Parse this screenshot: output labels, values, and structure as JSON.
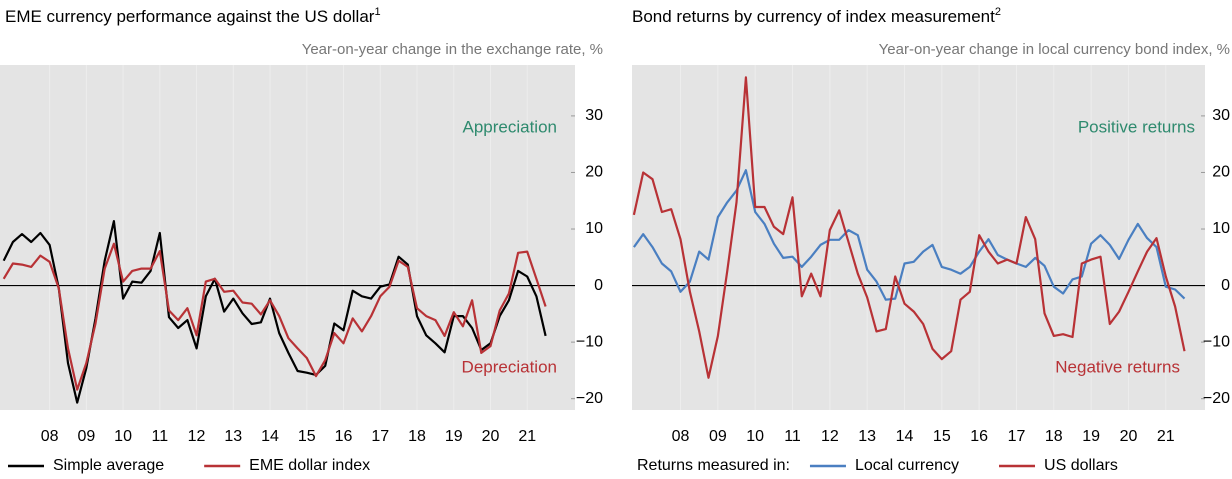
{
  "chart_data": [
    {
      "type": "line",
      "title": "EME currency performance against the US dollar",
      "title_superscript": "1",
      "subtitle": "Year-on-year change in the exchange rate, %",
      "annotations": [
        {
          "text": "Appreciation",
          "color": "#2e8a6e"
        },
        {
          "text": "Depreciation",
          "color": "#b83236"
        }
      ],
      "x": [
        2007.25,
        2007.5,
        2007.75,
        2008,
        2008.25,
        2008.5,
        2008.75,
        2009,
        2009.25,
        2009.5,
        2009.75,
        2010,
        2010.25,
        2010.5,
        2010.75,
        2011,
        2011.25,
        2011.5,
        2011.75,
        2012,
        2012.25,
        2012.5,
        2012.75,
        2013,
        2013.25,
        2013.5,
        2013.75,
        2014,
        2014.25,
        2014.5,
        2014.75,
        2015,
        2015.25,
        2015.5,
        2015.75,
        2016,
        2016.25,
        2016.5,
        2016.75,
        2017,
        2017.25,
        2017.5,
        2017.75,
        2018,
        2018.25,
        2018.5,
        2018.75,
        2019,
        2019.25,
        2019.5,
        2019.75,
        2020,
        2020.25,
        2020.5,
        2020.75,
        2021,
        2021.25,
        2021.5,
        2021.75,
        2022
      ],
      "series": [
        {
          "name": "Simple average",
          "color": "#000000",
          "values": [
            4.4,
            7.7,
            9.1,
            7.7,
            9.3,
            7.2,
            -0.5,
            -13.7,
            -20.7,
            -14.6,
            -5.8,
            4.4,
            11.4,
            -2.3,
            0.7,
            0.5,
            2.6,
            9.3,
            -5.6,
            -7.5,
            -6.1,
            -11.1,
            -1.9,
            1.2,
            -4.6,
            -2.3,
            -4.9,
            -6.8,
            -6.5,
            -2.3,
            -8.4,
            -11.9,
            -15.1,
            -15.4,
            -15.8,
            -14.2,
            -6.7,
            -7.9,
            -0.9,
            -1.9,
            -2.3,
            -0.2,
            0.2,
            5.1,
            3.7,
            -5.4,
            -8.8,
            -10.2,
            -11.8,
            -5.4,
            -5.4,
            -7.5,
            -11.4,
            -10.2,
            -5.4,
            -2.6,
            2.6,
            1.6,
            -1.9,
            -8.9
          ]
        },
        {
          "name": "EME dollar index",
          "color": "#b83236",
          "values": [
            1.2,
            3.9,
            3.7,
            3.3,
            5.3,
            4.2,
            -0.5,
            -11.1,
            -18.4,
            -13.7,
            -6.7,
            3.0,
            7.4,
            0.7,
            2.6,
            3.0,
            3.0,
            6.1,
            -4.4,
            -6.1,
            -4.0,
            -8.8,
            0.7,
            1.2,
            -1.1,
            -0.9,
            -3.0,
            -3.2,
            -5.1,
            -2.6,
            -5.4,
            -9.3,
            -11.1,
            -12.8,
            -16.0,
            -13.2,
            -8.4,
            -10.2,
            -5.8,
            -8.1,
            -5.4,
            -1.9,
            -0.2,
            4.4,
            3.3,
            -4.0,
            -5.4,
            -6.1,
            -8.9,
            -4.7,
            -7.2,
            -2.6,
            -11.9,
            -10.7,
            -4.4,
            -1.4,
            5.8,
            6.0,
            1.2,
            -3.7
          ]
        }
      ],
      "xlim": [
        2007.15,
        2022.8
      ],
      "xticks": [
        {
          "value": 2008.5,
          "label": "08"
        },
        {
          "value": 2009.5,
          "label": "09"
        },
        {
          "value": 2010.5,
          "label": "10"
        },
        {
          "value": 2011.5,
          "label": "11"
        },
        {
          "value": 2012.5,
          "label": "12"
        },
        {
          "value": 2013.5,
          "label": "13"
        },
        {
          "value": 2014.5,
          "label": "14"
        },
        {
          "value": 2015.5,
          "label": "15"
        },
        {
          "value": 2016.5,
          "label": "16"
        },
        {
          "value": 2017.5,
          "label": "17"
        },
        {
          "value": 2018.5,
          "label": "18"
        },
        {
          "value": 2019.5,
          "label": "19"
        },
        {
          "value": 2020.5,
          "label": "20"
        },
        {
          "value": 2021.5,
          "label": "21"
        }
      ],
      "ylim": [
        -22,
        39
      ],
      "yticks": [
        {
          "value": -20,
          "label": "−20"
        },
        {
          "value": -10,
          "label": "−10"
        },
        0,
        10,
        20,
        30
      ]
    },
    {
      "type": "line",
      "title": "Bond returns by currency of index measurement",
      "title_superscript": "2",
      "subtitle": "Year-on-year change in local currency bond index, %",
      "annotations": [
        {
          "text": "Positive returns",
          "color": "#2e8a6e"
        },
        {
          "text": "Negative returns",
          "color": "#b83236"
        }
      ],
      "legend_prefix": "Returns measured in:",
      "x": [
        2007.25,
        2007.5,
        2007.75,
        2008,
        2008.25,
        2008.5,
        2008.75,
        2009,
        2009.25,
        2009.5,
        2009.75,
        2010,
        2010.25,
        2010.5,
        2010.75,
        2011,
        2011.25,
        2011.5,
        2011.75,
        2012,
        2012.25,
        2012.5,
        2012.75,
        2013,
        2013.25,
        2013.5,
        2013.75,
        2014,
        2014.25,
        2014.5,
        2014.75,
        2015,
        2015.25,
        2015.5,
        2015.75,
        2016,
        2016.25,
        2016.5,
        2016.75,
        2017,
        2017.25,
        2017.5,
        2017.75,
        2018,
        2018.25,
        2018.5,
        2018.75,
        2019,
        2019.25,
        2019.5,
        2019.75,
        2020,
        2020.25,
        2020.5,
        2020.75,
        2021,
        2021.25,
        2021.5,
        2021.75,
        2022
      ],
      "series": [
        {
          "name": "Local currency",
          "color": "#4a7fc1",
          "values": [
            6.8,
            9.1,
            6.8,
            3.9,
            2.5,
            -1.1,
            0.7,
            6.0,
            4.6,
            12.1,
            14.7,
            16.8,
            20.4,
            13.0,
            10.9,
            7.4,
            4.9,
            5.1,
            3.3,
            5.1,
            7.2,
            8.1,
            8.1,
            9.8,
            8.9,
            2.8,
            0.7,
            -2.5,
            -2.3,
            3.9,
            4.2,
            6.0,
            7.2,
            3.3,
            2.8,
            2.1,
            3.3,
            6.0,
            8.2,
            5.4,
            4.6,
            3.9,
            3.3,
            4.9,
            3.5,
            -0.2,
            -1.4,
            1.1,
            1.6,
            7.4,
            8.9,
            7.2,
            4.7,
            8.1,
            10.9,
            8.4,
            6.8,
            -0.2,
            -0.7,
            -2.3
          ]
        },
        {
          "name": "US dollars",
          "color": "#b83236",
          "values": [
            12.5,
            20.0,
            18.8,
            13.0,
            13.5,
            8.2,
            -1.1,
            -8.1,
            -16.3,
            -8.9,
            2.5,
            14.7,
            36.8,
            13.9,
            13.9,
            10.4,
            9.1,
            15.6,
            -1.9,
            2.1,
            -1.9,
            9.8,
            13.3,
            7.7,
            2.1,
            -2.1,
            -8.1,
            -7.7,
            1.6,
            -3.2,
            -4.6,
            -6.8,
            -11.2,
            -13.0,
            -11.6,
            -2.5,
            -1.1,
            8.9,
            6.0,
            3.9,
            4.6,
            3.9,
            12.1,
            8.2,
            -4.9,
            -8.9,
            -8.6,
            -9.1,
            3.9,
            4.6,
            5.1,
            -6.8,
            -4.6,
            -1.1,
            2.5,
            6.0,
            8.4,
            1.6,
            -3.7,
            -11.6
          ]
        }
      ],
      "xlim": [
        2007.2,
        2022.55
      ],
      "xticks": [
        {
          "value": 2008.5,
          "label": "08"
        },
        {
          "value": 2009.5,
          "label": "09"
        },
        {
          "value": 2010.5,
          "label": "10"
        },
        {
          "value": 2011.5,
          "label": "11"
        },
        {
          "value": 2012.5,
          "label": "12"
        },
        {
          "value": 2013.5,
          "label": "13"
        },
        {
          "value": 2014.5,
          "label": "14"
        },
        {
          "value": 2015.5,
          "label": "15"
        },
        {
          "value": 2016.5,
          "label": "16"
        },
        {
          "value": 2017.5,
          "label": "17"
        },
        {
          "value": 2018.5,
          "label": "18"
        },
        {
          "value": 2019.5,
          "label": "19"
        },
        {
          "value": 2020.5,
          "label": "20"
        },
        {
          "value": 2021.5,
          "label": "21"
        }
      ],
      "ylim": [
        -22,
        39
      ],
      "yticks": [
        {
          "value": -20,
          "label": "−20"
        },
        {
          "value": -10,
          "label": "−10"
        },
        0,
        10,
        20,
        30
      ]
    }
  ]
}
